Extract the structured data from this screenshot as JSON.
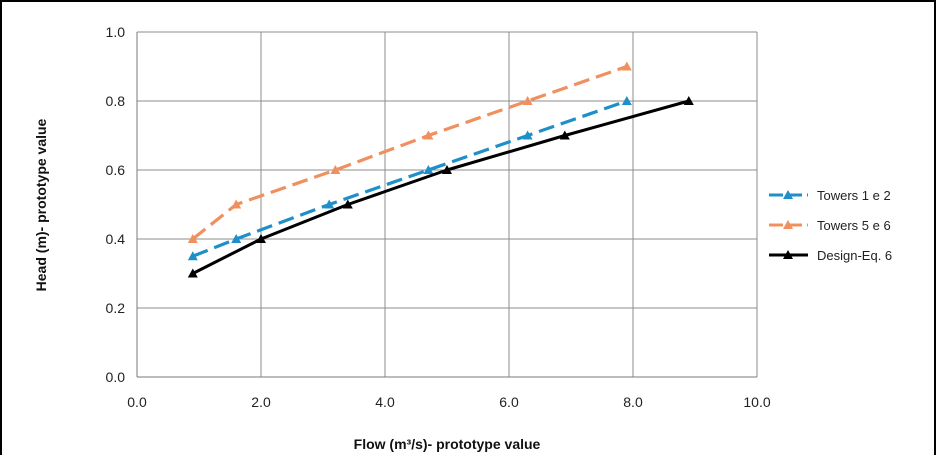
{
  "chart_data": {
    "type": "line",
    "title": "",
    "xlabel": "Flow (m³/s)- prototype value",
    "ylabel": "Head (m)- prototype value",
    "xlim": [
      0,
      10
    ],
    "ylim": [
      0,
      1
    ],
    "x_ticks": [
      "0.0",
      "2.0",
      "4.0",
      "6.0",
      "8.0",
      "10.0"
    ],
    "y_ticks": [
      "0.0",
      "0.2",
      "0.4",
      "0.6",
      "0.8",
      "1.0"
    ],
    "grid": true,
    "legend_position": "right",
    "series": [
      {
        "name": "Towers 1 e 2",
        "color": "#1f8fc9",
        "dash": "dashed",
        "marker": "triangle",
        "x": [
          0.9,
          1.6,
          3.1,
          4.7,
          6.3,
          7.9
        ],
        "y": [
          0.35,
          0.4,
          0.5,
          0.6,
          0.7,
          0.8
        ]
      },
      {
        "name": "Towers 5 e 6",
        "color": "#f0905f",
        "dash": "dashed",
        "marker": "triangle",
        "x": [
          0.9,
          1.6,
          3.2,
          4.7,
          6.3,
          7.9
        ],
        "y": [
          0.4,
          0.5,
          0.6,
          0.7,
          0.8,
          0.9
        ]
      },
      {
        "name": "Design-Eq. 6",
        "color": "#000000",
        "dash": "solid",
        "marker": "triangle",
        "x": [
          0.9,
          2.0,
          3.4,
          5.0,
          6.9,
          8.9
        ],
        "y": [
          0.3,
          0.4,
          0.5,
          0.6,
          0.7,
          0.8
        ]
      }
    ]
  }
}
